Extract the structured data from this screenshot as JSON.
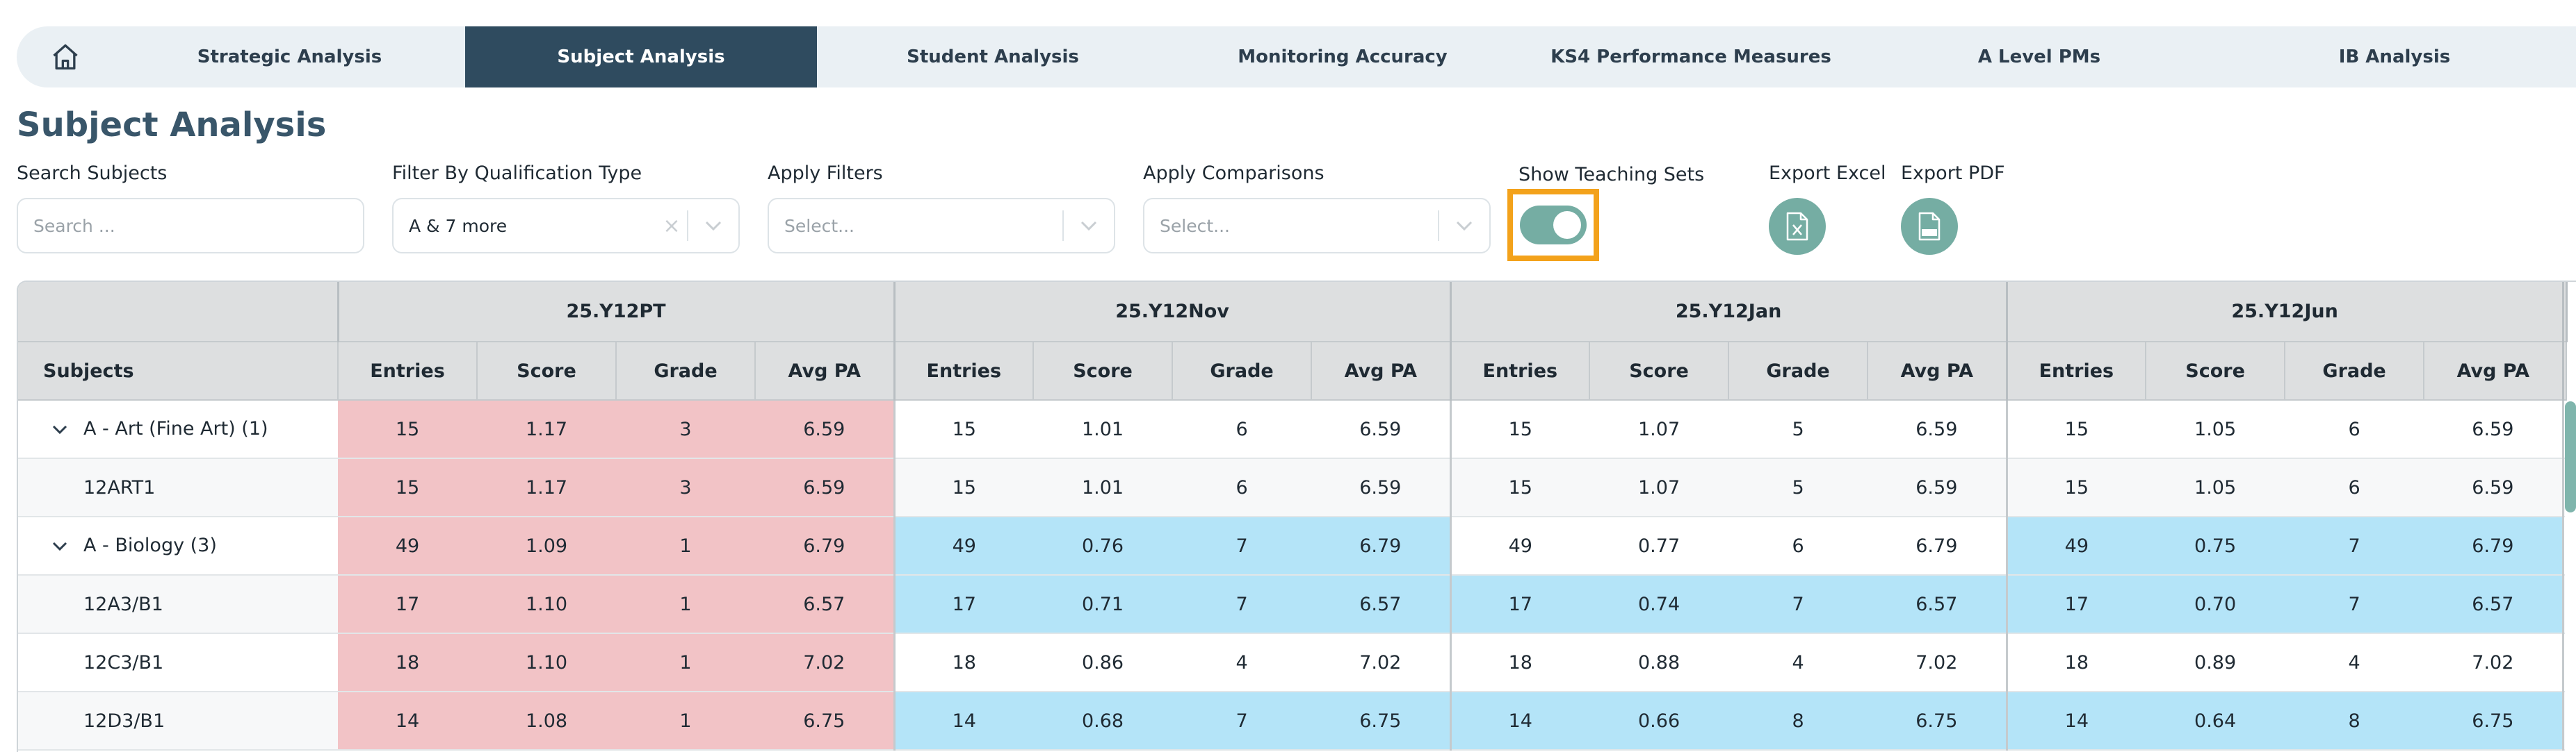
{
  "nav": {
    "home_icon": "home-icon",
    "tabs": [
      {
        "label": "Strategic Analysis",
        "active": false
      },
      {
        "label": "Subject Analysis",
        "active": true
      },
      {
        "label": "Student Analysis",
        "active": false
      },
      {
        "label": "Monitoring Accuracy",
        "active": false
      },
      {
        "label": "KS4 Performance Measures",
        "active": false
      },
      {
        "label": "A Level PMs",
        "active": false
      },
      {
        "label": "IB Analysis",
        "active": false
      }
    ]
  },
  "page": {
    "title": "Subject Analysis"
  },
  "filters": {
    "search": {
      "label": "Search Subjects",
      "placeholder": "Search ..."
    },
    "qualification": {
      "label": "Filter By Qualification Type",
      "value": "A & 7 more",
      "clear": "×"
    },
    "apply_filters": {
      "label": "Apply Filters",
      "placeholder": "Select..."
    },
    "apply_comparisons": {
      "label": "Apply Comparisons",
      "placeholder": "Select..."
    },
    "teaching_sets": {
      "label": "Show Teaching Sets",
      "on": true
    },
    "export_excel": {
      "label": "Export Excel"
    },
    "export_pdf": {
      "label": "Export PDF"
    }
  },
  "colors": {
    "accent": "#75ada3",
    "nav_active": "#2f4b5f",
    "highlight_outline": "#f3a21b",
    "cell_pink": "#f2c3c6",
    "cell_blue": "#b4e4f8"
  },
  "table": {
    "subjects_header": "Subjects",
    "groups": [
      "25.Y12PT",
      "25.Y12Nov",
      "25.Y12Jan",
      "25.Y12Jun"
    ],
    "columns": [
      "Entries",
      "Score",
      "Grade",
      "Avg PA"
    ],
    "rows": [
      {
        "subject": "A - Art (Fine Art) (1)",
        "expandable": true,
        "groups": [
          {
            "values": [
              "15",
              "1.17",
              "3",
              "6.59"
            ],
            "highlight": "pink"
          },
          {
            "values": [
              "15",
              "1.01",
              "6",
              "6.59"
            ],
            "highlight": ""
          },
          {
            "values": [
              "15",
              "1.07",
              "5",
              "6.59"
            ],
            "highlight": ""
          },
          {
            "values": [
              "15",
              "1.05",
              "6",
              "6.59"
            ],
            "highlight": ""
          }
        ]
      },
      {
        "subject": "12ART1",
        "expandable": false,
        "groups": [
          {
            "values": [
              "15",
              "1.17",
              "3",
              "6.59"
            ],
            "highlight": "pink"
          },
          {
            "values": [
              "15",
              "1.01",
              "6",
              "6.59"
            ],
            "highlight": ""
          },
          {
            "values": [
              "15",
              "1.07",
              "5",
              "6.59"
            ],
            "highlight": ""
          },
          {
            "values": [
              "15",
              "1.05",
              "6",
              "6.59"
            ],
            "highlight": ""
          }
        ]
      },
      {
        "subject": "A - Biology (3)",
        "expandable": true,
        "groups": [
          {
            "values": [
              "49",
              "1.09",
              "1",
              "6.79"
            ],
            "highlight": "pink"
          },
          {
            "values": [
              "49",
              "0.76",
              "7",
              "6.79"
            ],
            "highlight": "blue"
          },
          {
            "values": [
              "49",
              "0.77",
              "6",
              "6.79"
            ],
            "highlight": ""
          },
          {
            "values": [
              "49",
              "0.75",
              "7",
              "6.79"
            ],
            "highlight": "blue"
          }
        ]
      },
      {
        "subject": "12A3/B1",
        "expandable": false,
        "groups": [
          {
            "values": [
              "17",
              "1.10",
              "1",
              "6.57"
            ],
            "highlight": "pink"
          },
          {
            "values": [
              "17",
              "0.71",
              "7",
              "6.57"
            ],
            "highlight": "blue"
          },
          {
            "values": [
              "17",
              "0.74",
              "7",
              "6.57"
            ],
            "highlight": "blue"
          },
          {
            "values": [
              "17",
              "0.70",
              "7",
              "6.57"
            ],
            "highlight": "blue"
          }
        ]
      },
      {
        "subject": "12C3/B1",
        "expandable": false,
        "groups": [
          {
            "values": [
              "18",
              "1.10",
              "1",
              "7.02"
            ],
            "highlight": "pink"
          },
          {
            "values": [
              "18",
              "0.86",
              "4",
              "7.02"
            ],
            "highlight": ""
          },
          {
            "values": [
              "18",
              "0.88",
              "4",
              "7.02"
            ],
            "highlight": ""
          },
          {
            "values": [
              "18",
              "0.89",
              "4",
              "7.02"
            ],
            "highlight": ""
          }
        ]
      },
      {
        "subject": "12D3/B1",
        "expandable": false,
        "groups": [
          {
            "values": [
              "14",
              "1.08",
              "1",
              "6.75"
            ],
            "highlight": "pink"
          },
          {
            "values": [
              "14",
              "0.68",
              "7",
              "6.75"
            ],
            "highlight": "blue"
          },
          {
            "values": [
              "14",
              "0.66",
              "8",
              "6.75"
            ],
            "highlight": "blue"
          },
          {
            "values": [
              "14",
              "0.64",
              "8",
              "6.75"
            ],
            "highlight": "blue"
          }
        ]
      }
    ]
  }
}
